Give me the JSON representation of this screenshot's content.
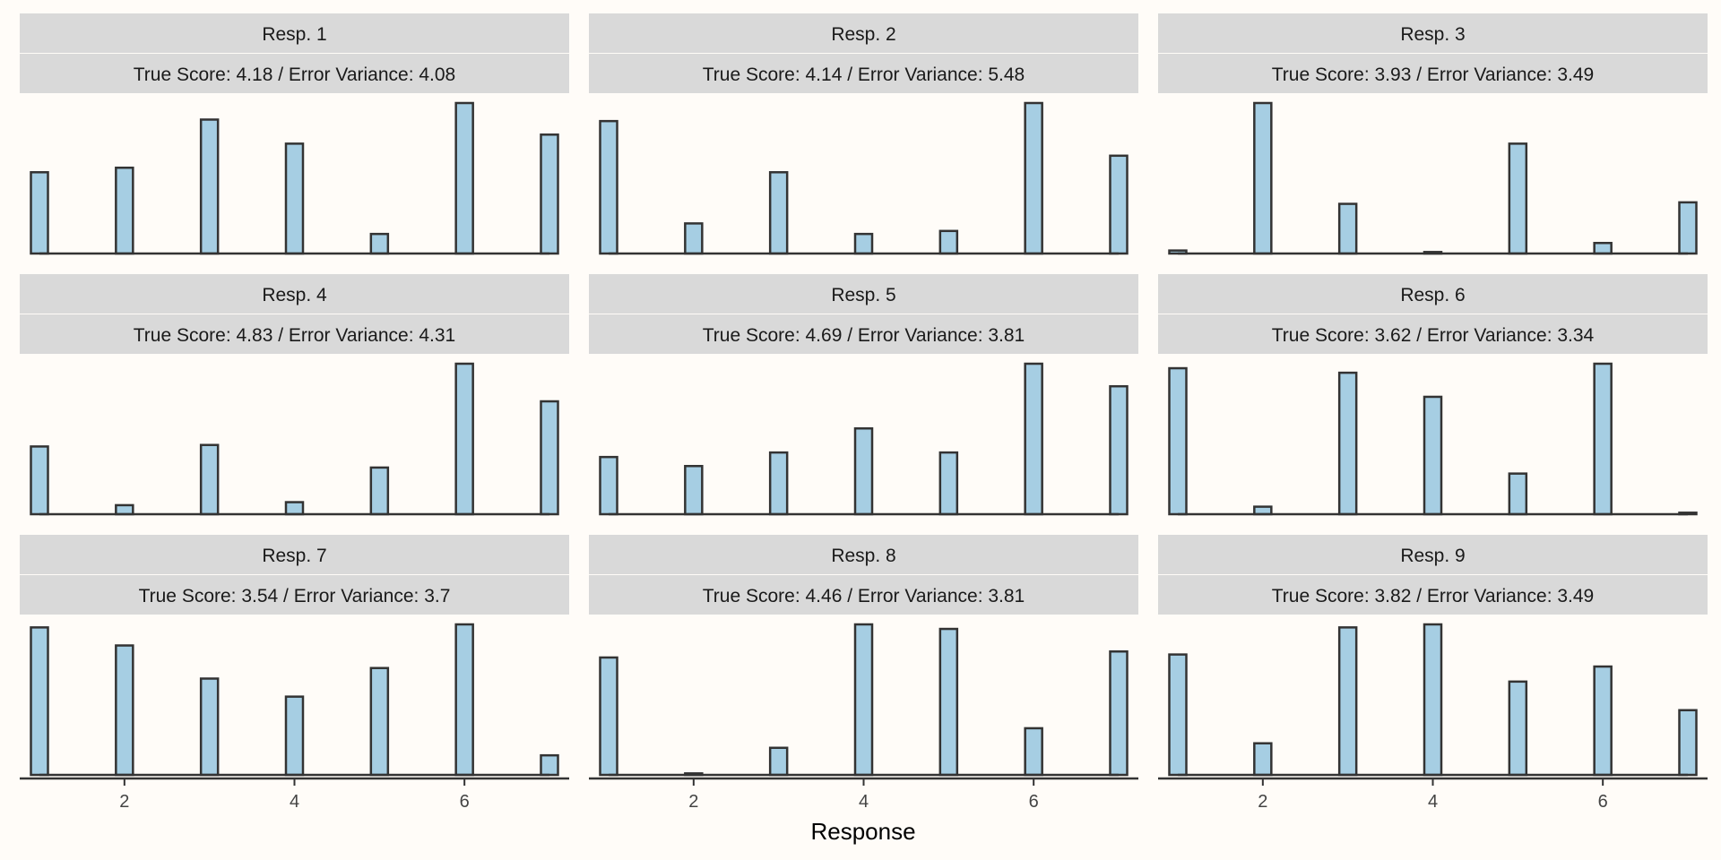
{
  "chart_data": {
    "type": "bar",
    "xlabel": "Response",
    "ylabel": "",
    "x_ticks": [
      2,
      4,
      6
    ],
    "x_range": [
      0.7,
      7.3
    ],
    "categories": [
      1,
      2,
      3,
      4,
      5,
      6,
      7
    ],
    "legend": "none",
    "grid": false,
    "colors": {
      "bar_fill": "#a6cee3",
      "bar_stroke": "#333333",
      "strip_bg": "#d9d9d9",
      "background": "#fffcf8"
    },
    "panels": [
      {
        "title": "Resp. 1",
        "subtitle": "True Score: 4.18 / Error Variance: 4.08",
        "values": [
          0.54,
          0.57,
          0.89,
          0.73,
          0.13,
          1.0,
          0.79
        ]
      },
      {
        "title": "Resp. 2",
        "subtitle": "True Score: 4.14 / Error Variance: 5.48",
        "values": [
          0.88,
          0.2,
          0.54,
          0.13,
          0.15,
          1.0,
          0.65
        ]
      },
      {
        "title": "Resp. 3",
        "subtitle": "True Score: 3.93 / Error Variance: 3.49",
        "values": [
          0.02,
          1.0,
          0.33,
          0.01,
          0.73,
          0.07,
          0.34
        ]
      },
      {
        "title": "Resp. 4",
        "subtitle": "True Score: 4.83 / Error Variance: 4.31",
        "values": [
          0.45,
          0.06,
          0.46,
          0.08,
          0.31,
          1.0,
          0.75
        ]
      },
      {
        "title": "Resp. 5",
        "subtitle": "True Score: 4.69 / Error Variance: 3.81",
        "values": [
          0.38,
          0.32,
          0.41,
          0.57,
          0.41,
          1.0,
          0.85
        ]
      },
      {
        "title": "Resp. 6",
        "subtitle": "True Score: 3.62 / Error Variance: 3.34",
        "values": [
          0.97,
          0.05,
          0.94,
          0.78,
          0.27,
          1.0,
          0.01
        ]
      },
      {
        "title": "Resp. 7",
        "subtitle": "True Score: 3.54 / Error Variance: 3.7",
        "values": [
          0.98,
          0.86,
          0.64,
          0.52,
          0.71,
          1.0,
          0.13
        ]
      },
      {
        "title": "Resp. 8",
        "subtitle": "True Score: 4.46 / Error Variance: 3.81",
        "values": [
          0.78,
          0.01,
          0.18,
          1.0,
          0.97,
          0.31,
          0.82
        ]
      },
      {
        "title": "Resp. 9",
        "subtitle": "True Score: 3.82 / Error Variance: 3.49",
        "values": [
          0.8,
          0.21,
          0.98,
          1.0,
          0.62,
          0.72,
          0.43
        ]
      }
    ]
  }
}
